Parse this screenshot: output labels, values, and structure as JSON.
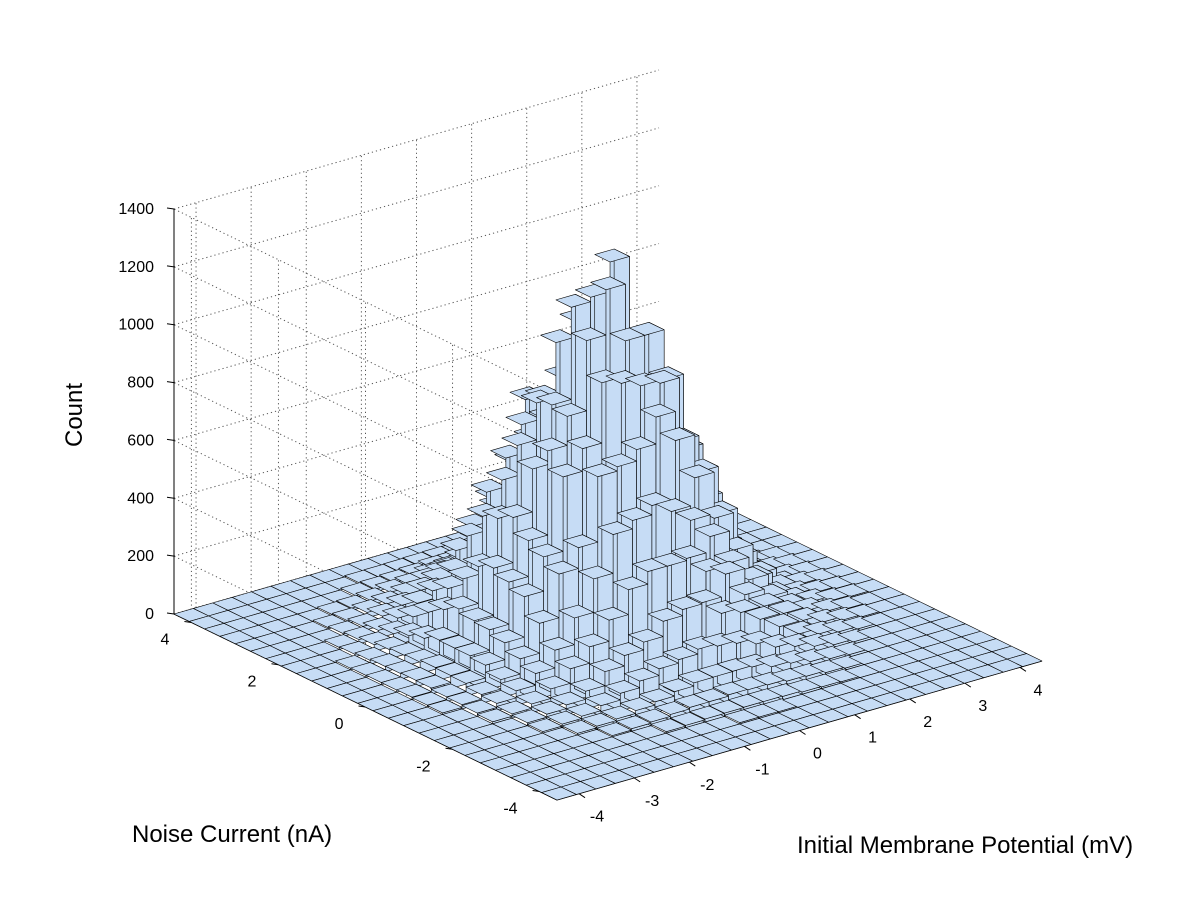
{
  "chart_data": {
    "type": "bar3d",
    "xlabel": "Initial Membrane Potential (mV)",
    "ylabel": "Noise Current (nA)",
    "zlabel": "Count",
    "x_ticks": [
      -4,
      -3,
      -2,
      -1,
      0,
      1,
      2,
      3,
      4
    ],
    "y_ticks": [
      -4,
      -2,
      0,
      2,
      4
    ],
    "z_ticks": [
      0,
      200,
      400,
      600,
      800,
      1000,
      1200,
      1400
    ],
    "xlim": [
      -4.4,
      4.4
    ],
    "ylim": [
      -4.4,
      4.4
    ],
    "zlim": [
      0,
      1400
    ],
    "grid": true,
    "bar_color": "#c6dcf5",
    "edge_color": "#000000",
    "distribution": {
      "shape": "bivariate-gaussian",
      "peak_count": 1180,
      "center_x": 0.1,
      "center_y": 0.3,
      "sigma_x": 1.15,
      "sigma_y": 1.15,
      "bins_per_axis": 25
    }
  }
}
